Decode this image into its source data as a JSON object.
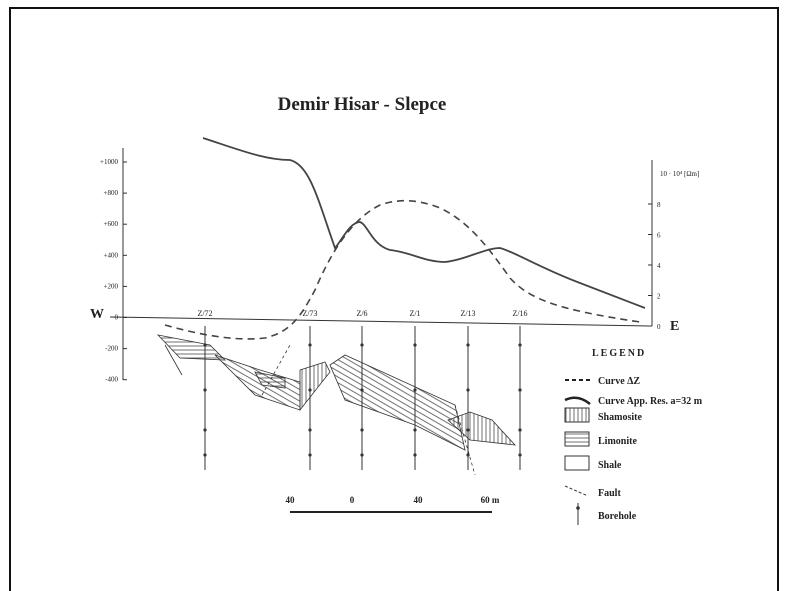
{
  "title": "Demir Hisar - Slepce",
  "left_axis": {
    "ticks": [
      "+1000",
      "+800",
      "+600",
      "+400",
      "+200",
      "0",
      "-200",
      "-400"
    ]
  },
  "right_axis": {
    "unit": "10 · 10⁴ [Ωm]",
    "ticks": [
      "8",
      "6",
      "4",
      "2",
      "0"
    ]
  },
  "west": "W",
  "east": "E",
  "boreholes": [
    "Z/72",
    "Z/73",
    "Z/6",
    "Z/1",
    "Z/13",
    "Z/16"
  ],
  "legend": {
    "title": "LEGEND",
    "items": [
      "Curve ΔZ",
      "Curve App. Res. a=32 m",
      "Shamosite",
      "Limonite",
      "Shale",
      "Fault",
      "Borehole"
    ]
  },
  "scale": [
    "40",
    "0",
    "40",
    "60 m"
  ]
}
